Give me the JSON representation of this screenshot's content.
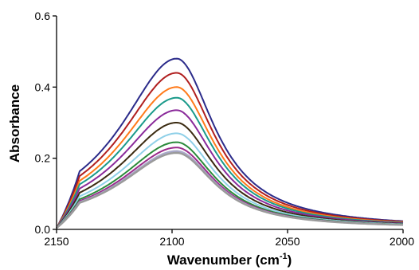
{
  "chart_data": {
    "type": "line",
    "title": "",
    "xlabel_parts": [
      "Wavenumber (cm",
      "-1",
      ")"
    ],
    "ylabel": "Absorbance",
    "xlim": [
      2150,
      2000
    ],
    "ylim": [
      0,
      0.6
    ],
    "x_reversed": true,
    "grid": false,
    "legend": "none",
    "x_ticks": [
      2150,
      2100,
      2050,
      2000
    ],
    "x_tick_labels": [
      "2150",
      "2100",
      "2050",
      "2000"
    ],
    "y_ticks": [
      0,
      0.2,
      0.4,
      0.6
    ],
    "y_tick_labels": [
      "0.0",
      "0.2",
      "0.4",
      "0.6"
    ],
    "peak_wavenumber": 2098,
    "series": [
      {
        "peak": 0.48,
        "color": "#2b2b8a"
      },
      {
        "peak": 0.44,
        "color": "#b01e1e"
      },
      {
        "peak": 0.4,
        "color": "#ff7a1a"
      },
      {
        "peak": 0.37,
        "color": "#1a9a8a"
      },
      {
        "peak": 0.335,
        "color": "#8a2a9a"
      },
      {
        "peak": 0.3,
        "color": "#3a2a10"
      },
      {
        "peak": 0.27,
        "color": "#8fd0e8"
      },
      {
        "peak": 0.245,
        "color": "#2a8a3a"
      },
      {
        "peak": 0.23,
        "color": "#9a2a8a"
      },
      {
        "peak": 0.22,
        "color": "#a9a9c9"
      },
      {
        "peak": 0.215,
        "color": "#9a9a9a"
      }
    ]
  }
}
